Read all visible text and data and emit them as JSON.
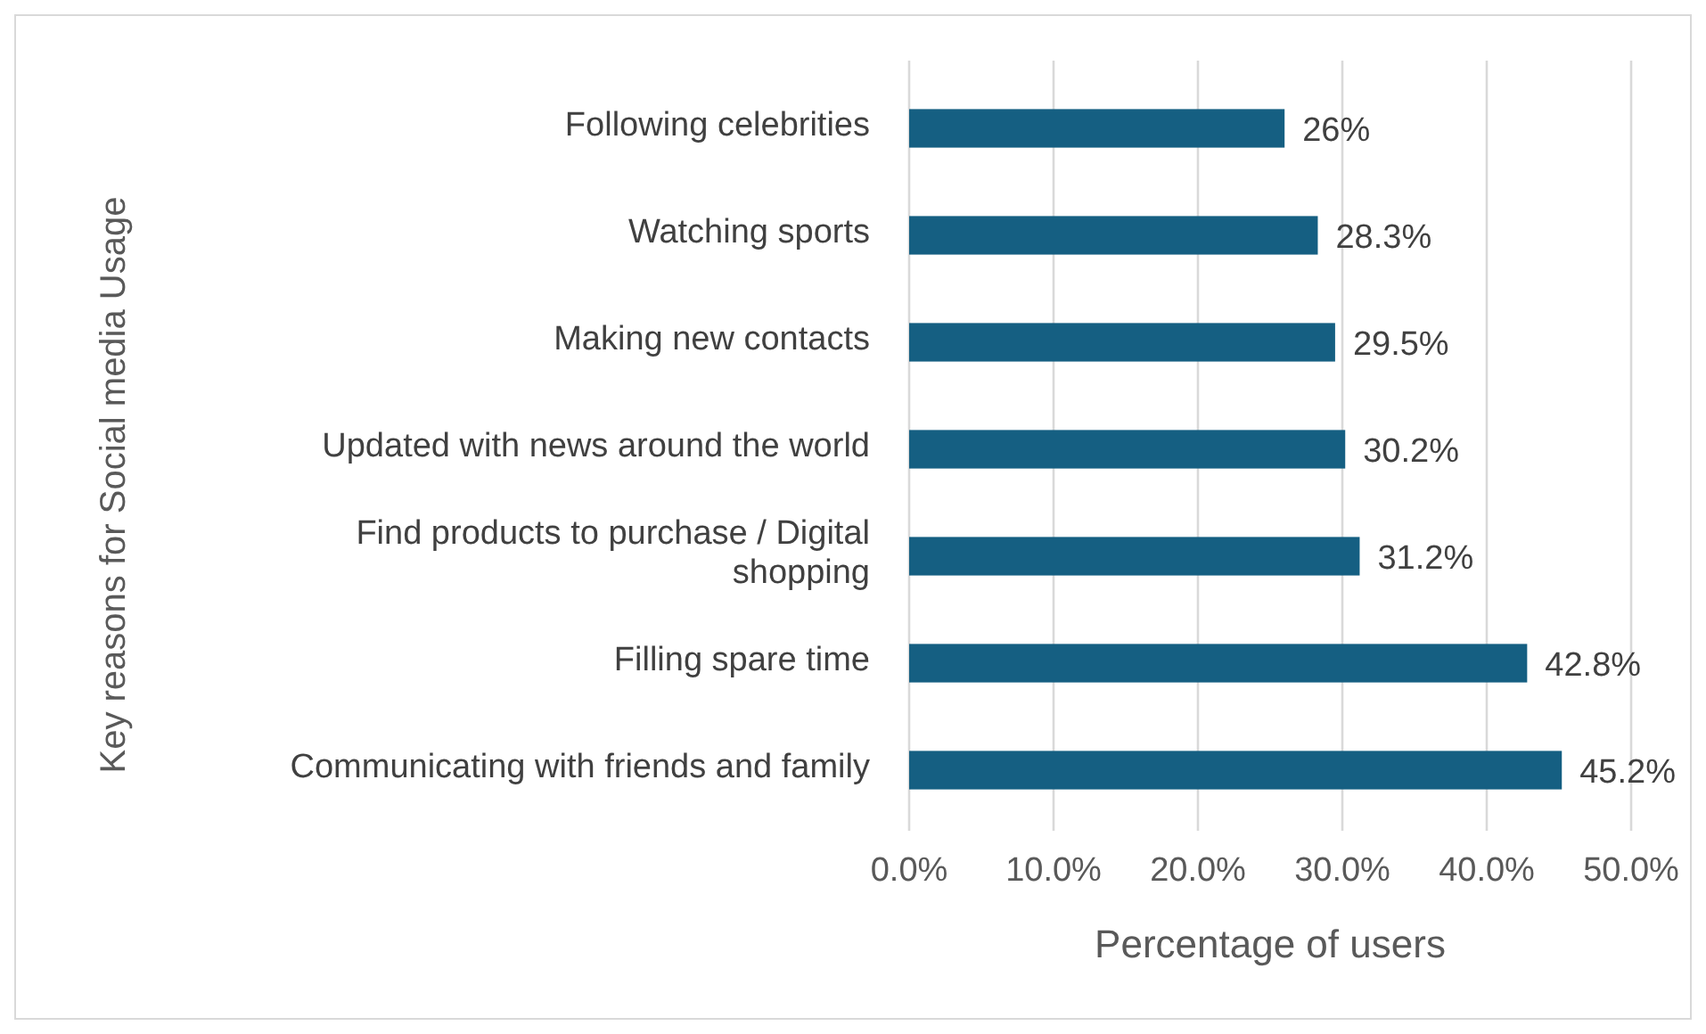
{
  "chart_data": {
    "type": "bar",
    "orientation": "horizontal",
    "xlabel": "Percentage of users",
    "ylabel": "Key reasons for Social media Usage",
    "categories": [
      "Following celebrities",
      "Watching sports",
      "Making new contacts",
      "Updated with news around the world",
      "Find products to purchase / Digital shopping",
      "Filling spare time",
      "Communicating with friends and family"
    ],
    "values": [
      26,
      28.3,
      29.5,
      30.2,
      31.2,
      42.8,
      45.2
    ],
    "value_labels": [
      "26%",
      "28.3%",
      "29.5%",
      "30.2%",
      "31.2%",
      "42.8%",
      "45.2%"
    ],
    "color": "#155f82",
    "xlim": [
      0,
      50
    ],
    "xticks": [
      {
        "value": 0,
        "label": "0.0%"
      },
      {
        "value": 10,
        "label": "10.0%"
      },
      {
        "value": 20,
        "label": "20.0%"
      },
      {
        "value": 30,
        "label": "30.0%"
      },
      {
        "value": 40,
        "label": "40.0%"
      },
      {
        "value": 50,
        "label": "50.0%"
      }
    ],
    "grid": "x"
  }
}
